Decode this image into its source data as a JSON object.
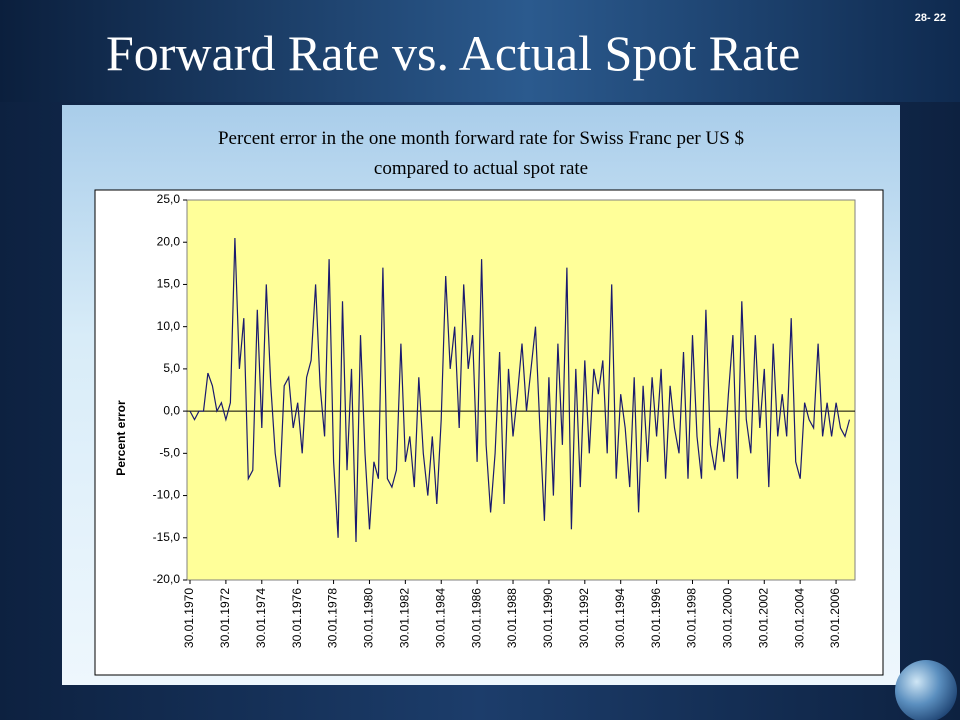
{
  "page_number": "28- 22",
  "title": "Forward Rate vs. Actual Spot Rate",
  "chart_data": {
    "type": "line",
    "subtitle": [
      "Percent error in the one month forward rate for Swiss Franc per US $",
      "compared to actual spot rate"
    ],
    "y_label": "Percent  error",
    "color": "#1a1a6e",
    "plot_background": "#ffff99",
    "ylim": [
      -20,
      25
    ],
    "yticks": [
      {
        "value": -20,
        "label": "-20,0"
      },
      {
        "value": -15,
        "label": "-15,0"
      },
      {
        "value": -10,
        "label": "-10,0"
      },
      {
        "value": -5,
        "label": "-5,0"
      },
      {
        "value": 0,
        "label": "0,0"
      },
      {
        "value": 5,
        "label": "5,0"
      },
      {
        "value": 10,
        "label": "10,0"
      },
      {
        "value": 15,
        "label": "15,0"
      },
      {
        "value": 20,
        "label": "20,0"
      },
      {
        "value": 25,
        "label": "25,0"
      }
    ],
    "categories": [
      "30.01.1970",
      null,
      null,
      null,
      null,
      null,
      null,
      null,
      "30.01.1972",
      null,
      null,
      null,
      null,
      null,
      null,
      null,
      "30.01.1974",
      null,
      null,
      null,
      null,
      null,
      null,
      null,
      "30.01.1976",
      null,
      null,
      null,
      null,
      null,
      null,
      null,
      "30.01.1978",
      null,
      null,
      null,
      null,
      null,
      null,
      null,
      "30.01.1980",
      null,
      null,
      null,
      null,
      null,
      null,
      null,
      "30.01.1982",
      null,
      null,
      null,
      null,
      null,
      null,
      null,
      "30.01.1984",
      null,
      null,
      null,
      null,
      null,
      null,
      null,
      "30.01.1986",
      null,
      null,
      null,
      null,
      null,
      null,
      null,
      "30.01.1988",
      null,
      null,
      null,
      null,
      null,
      null,
      null,
      "30.01.1990",
      null,
      null,
      null,
      null,
      null,
      null,
      null,
      "30.01.1992",
      null,
      null,
      null,
      null,
      null,
      null,
      null,
      "30.01.1994",
      null,
      null,
      null,
      null,
      null,
      null,
      null,
      "30.01.1996",
      null,
      null,
      null,
      null,
      null,
      null,
      null,
      "30.01.1998",
      null,
      null,
      null,
      null,
      null,
      null,
      null,
      "30.01.2000",
      null,
      null,
      null,
      null,
      null,
      null,
      null,
      "30.01.2002",
      null,
      null,
      null,
      null,
      null,
      null,
      null,
      "30.01.2004",
      null,
      null,
      null,
      null,
      null,
      null,
      null,
      "30.01.2006",
      null,
      null,
      null
    ],
    "values": [
      0,
      -1,
      0,
      0,
      4.5,
      3,
      0,
      1,
      -1,
      1,
      20.5,
      5,
      11,
      -8,
      -7,
      12,
      -2,
      15,
      3,
      -5,
      -9,
      3,
      4,
      -2,
      1,
      -5,
      4,
      6,
      15,
      3,
      -3,
      18,
      -6,
      -15,
      13,
      -7,
      5,
      -15.5,
      9,
      -5,
      -14,
      -6,
      -8,
      17,
      -8,
      -9,
      -7,
      8,
      -6,
      -3,
      -9,
      4,
      -5,
      -10,
      -3,
      -11,
      -1,
      16,
      5,
      10,
      -2,
      15,
      5,
      9,
      -6,
      18,
      -4,
      -12,
      -5,
      7,
      -11,
      5,
      -3,
      2,
      8,
      0,
      5,
      10,
      -2,
      -13,
      4,
      -10,
      8,
      -4,
      17,
      -14,
      5,
      -9,
      6,
      -5,
      5,
      2,
      6,
      -5,
      15,
      -8,
      2,
      -2,
      -9,
      4,
      -12,
      3,
      -6,
      4,
      -3,
      5,
      -8,
      3,
      -2,
      -5,
      7,
      -8,
      9,
      -3,
      -8,
      12,
      -4,
      -7,
      -2,
      -6,
      2,
      9,
      -8,
      13,
      -1,
      -5,
      9,
      -2,
      5,
      -9,
      8,
      -3,
      2,
      -3,
      11,
      -6,
      -8,
      1,
      -1,
      -2,
      8,
      -3,
      1,
      -3,
      1,
      -2,
      -3,
      -1
    ]
  }
}
